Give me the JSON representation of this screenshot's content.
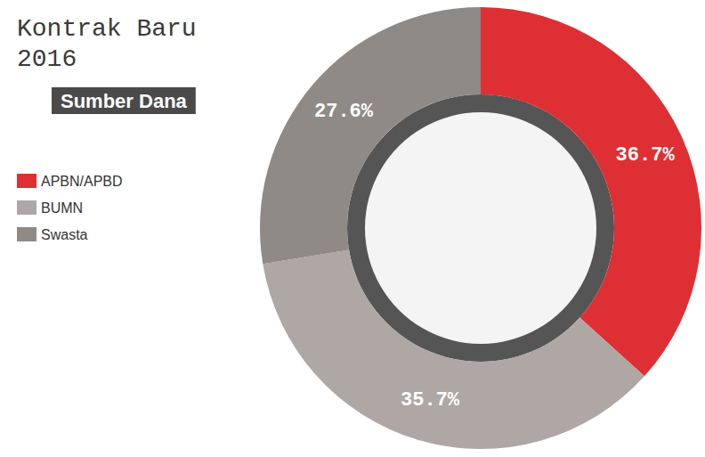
{
  "chart_data": {
    "type": "pie",
    "title": "Kontrak Baru 2016",
    "subtitle": "Sumber Dana",
    "categories": [
      "APBN/APBD",
      "BUMN",
      "Swasta"
    ],
    "values": [
      36.7,
      35.7,
      27.6
    ],
    "value_labels": [
      "36.7%",
      "35.7%",
      "27.6%"
    ],
    "colors": [
      "#de3034",
      "#aea7a4",
      "#8f8a86"
    ],
    "data_labels": true,
    "legend": "left"
  }
}
